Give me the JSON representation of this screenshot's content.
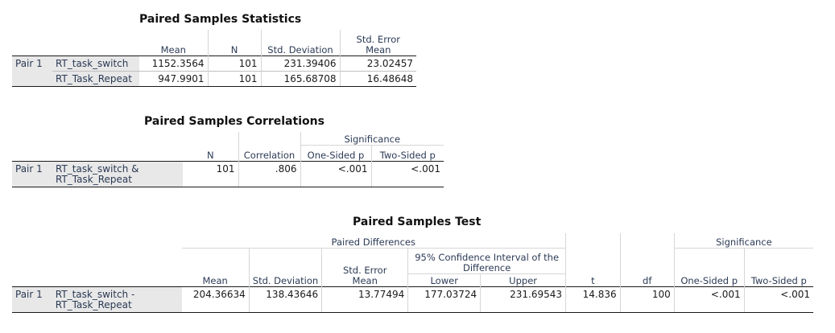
{
  "stats": {
    "title": "Paired Samples Statistics",
    "headers": {
      "mean": "Mean",
      "n": "N",
      "sd": "Std. Deviation",
      "se_line1": "Std. Error",
      "se_line2": "Mean"
    },
    "pair_label": "Pair 1",
    "rows": [
      {
        "name": "RT_task_switch",
        "mean": "1152.3564",
        "n": "101",
        "sd": "231.39406",
        "se": "23.02457"
      },
      {
        "name": "RT_Task_Repeat",
        "mean": "947.9901",
        "n": "101",
        "sd": "165.68708",
        "se": "16.48648"
      }
    ]
  },
  "corr": {
    "title": "Paired Samples Correlations",
    "headers": {
      "n": "N",
      "correlation": "Correlation",
      "significance": "Significance",
      "one_sided": "One-Sided p",
      "two_sided": "Two-Sided p"
    },
    "pair_label": "Pair 1",
    "row": {
      "name_line1": "RT_task_switch &",
      "name_line2": "RT_Task_Repeat",
      "n": "101",
      "correlation": ".806",
      "one_sided": "<.001",
      "two_sided": "<.001"
    }
  },
  "test": {
    "title": "Paired Samples Test",
    "headers": {
      "paired_diff": "Paired Differences",
      "mean": "Mean",
      "sd": "Std. Deviation",
      "se_line1": "Std. Error",
      "se_line2": "Mean",
      "ci_line1": "95% Confidence Interval of the",
      "ci_line2": "Difference",
      "lower": "Lower",
      "upper": "Upper",
      "t": "t",
      "df": "df",
      "significance": "Significance",
      "one_sided": "One-Sided p",
      "two_sided": "Two-Sided p"
    },
    "pair_label": "Pair 1",
    "row": {
      "name_line1": "RT_task_switch -",
      "name_line2": "RT_Task_Repeat",
      "mean": "204.36634",
      "sd": "138.43646",
      "se": "13.77494",
      "lower": "177.03724",
      "upper": "231.69543",
      "t": "14.836",
      "df": "100",
      "one_sided": "<.001",
      "two_sided": "<.001"
    }
  }
}
